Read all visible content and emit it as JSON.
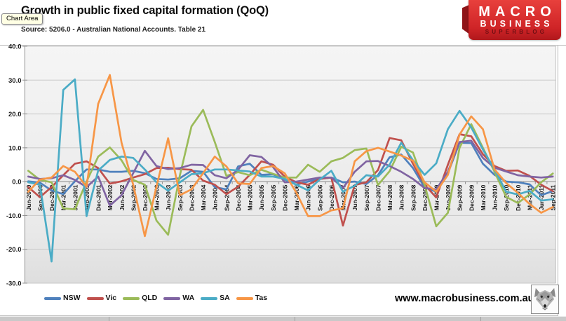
{
  "window": {
    "tooltip": "Chart Area"
  },
  "header": {
    "title": "Growth in public fixed capital formation (QoQ)",
    "source": "Source: 5206.0 - Australian National Accounts. Table 21"
  },
  "logo": {
    "line1": "MACRO",
    "line2": "BUSINESS",
    "line3": "SUPERBLOG"
  },
  "footer": {
    "url": "www.macrobusiness.com.au",
    "wolf_icon": "wolf-logo"
  },
  "chart_data": {
    "type": "line",
    "title": "Growth in public fixed capital formation (QoQ)",
    "source_note": "Source: 5206.0 - Australian National Accounts. Table 21",
    "xlabel": "",
    "ylabel": "",
    "ylim": [
      -30,
      40
    ],
    "ytick_step": 10,
    "ytick_labels": [
      "40.0",
      "30.0",
      "20.0",
      "10.0",
      "0.0",
      "-10.0",
      "-20.0",
      "-30.0"
    ],
    "grid": true,
    "legend_position": "bottom",
    "categories": [
      "Jun-2000",
      "Sep-2000",
      "Dec-2000",
      "Mar-2001",
      "Jun-2001",
      "Sep-2001",
      "Dec-2001",
      "Mar-2002",
      "Jun-2002",
      "Sep-2002",
      "Dec-2002",
      "Mar-2003",
      "Jun-2003",
      "Sep-2003",
      "Dec-2003",
      "Mar-2004",
      "Jun-2004",
      "Sep-2004",
      "Dec-2004",
      "Mar-2005",
      "Jun-2005",
      "Sep-2005",
      "Dec-2005",
      "Mar-2006",
      "Jun-2006",
      "Sep-2006",
      "Dec-2006",
      "Mar-2007",
      "Jun-2007",
      "Sep-2007",
      "Dec-2007",
      "Mar-2008",
      "Jun-2008",
      "Sep-2008",
      "Dec-2008",
      "Mar-2009",
      "Jun-2009",
      "Sep-2009",
      "Dec-2009",
      "Mar-2010",
      "Jun-2010",
      "Sep-2010",
      "Dec-2010",
      "Mar-2011",
      "Jun-2011",
      "Sep-2011"
    ],
    "series": [
      {
        "name": "NSW",
        "color": "#4F81BD",
        "values": [
          0.1,
          -0.3,
          -2.6,
          -3.7,
          0.1,
          3.6,
          3.6,
          2.9,
          2.9,
          3.2,
          2.5,
          0.8,
          0.6,
          1.0,
          3.2,
          2.9,
          -1.6,
          -2.3,
          4.5,
          5.3,
          2.0,
          2.2,
          0.6,
          -0.9,
          0.0,
          0.8,
          1.2,
          -0.2,
          0.0,
          -0.7,
          1.9,
          7.2,
          8.0,
          4.0,
          -1.7,
          -3.0,
          2.5,
          11.5,
          11.4,
          5.3,
          2.0,
          0.0,
          -0.2,
          -0.8,
          -4.0,
          -2.8
        ]
      },
      {
        "name": "Vic",
        "color": "#C0504D",
        "values": [
          -1.6,
          -4.6,
          -1.6,
          1.9,
          5.3,
          6.0,
          4.0,
          -0.6,
          0.1,
          1.2,
          2.2,
          4.0,
          4.1,
          3.7,
          3.5,
          0.3,
          -0.9,
          -3.7,
          -1.5,
          2.0,
          6.0,
          5.0,
          1.5,
          -0.2,
          -0.9,
          0.8,
          1.2,
          -13.0,
          -1.0,
          -0.2,
          3.4,
          12.9,
          12.2,
          5.3,
          -0.9,
          -4.7,
          5.0,
          14.0,
          13.4,
          8.1,
          4.6,
          3.2,
          3.3,
          1.7,
          -0.9,
          -2.8
        ]
      },
      {
        "name": "QLD",
        "color": "#9BBB59",
        "values": [
          3.2,
          0.5,
          -0.2,
          -7.9,
          -8.2,
          0.0,
          7.4,
          10.1,
          6.3,
          0.5,
          -0.9,
          -11.5,
          -15.7,
          1.8,
          16.3,
          21.2,
          11.7,
          1.7,
          2.8,
          1.9,
          3.5,
          2.3,
          1.2,
          1.2,
          5.0,
          2.9,
          6.0,
          7.0,
          9.3,
          9.8,
          -1.0,
          3.1,
          10.3,
          8.6,
          -1.0,
          -13.2,
          -9.2,
          10.0,
          17.0,
          10.0,
          2.9,
          -4.5,
          -6.3,
          -3.8,
          -0.2,
          2.4
        ]
      },
      {
        "name": "WA",
        "color": "#8064A2",
        "values": [
          1.5,
          0.8,
          1.0,
          1.9,
          0.5,
          -1.6,
          1.5,
          -7.1,
          -4.0,
          2.5,
          9.1,
          4.6,
          3.7,
          4.0,
          5.0,
          4.9,
          1.9,
          1.0,
          3.5,
          7.8,
          7.3,
          4.3,
          -0.2,
          0.0,
          0.6,
          1.2,
          1.2,
          -1.9,
          2.9,
          6.0,
          6.1,
          4.6,
          2.9,
          0.8,
          -1.9,
          -2.3,
          2.9,
          11.7,
          12.1,
          7.0,
          4.1,
          3.0,
          1.9,
          1.5,
          1.2,
          1.5
        ]
      },
      {
        "name": "SA",
        "color": "#4BACC6",
        "values": [
          -0.2,
          -0.9,
          -23.6,
          27.1,
          30.2,
          -10.2,
          3.3,
          6.4,
          7.4,
          7.0,
          3.6,
          -0.2,
          -2.7,
          -0.2,
          2.2,
          2.5,
          3.6,
          3.6,
          3.3,
          3.0,
          1.5,
          1.5,
          0.8,
          -0.9,
          -2.6,
          0.6,
          3.2,
          -3.0,
          -1.2,
          1.9,
          1.5,
          5.0,
          11.5,
          6.3,
          2.0,
          5.4,
          15.5,
          20.9,
          16.0,
          9.5,
          3.6,
          -3.0,
          -3.8,
          -2.7,
          -5.6,
          -5.2
        ]
      },
      {
        "name": "Tas",
        "color": "#F79646",
        "values": [
          -3.0,
          0.6,
          1.2,
          4.6,
          2.9,
          -1.5,
          23.0,
          31.5,
          11.5,
          -0.9,
          -16.1,
          -1.5,
          12.8,
          -4.0,
          -2.3,
          2.5,
          7.4,
          4.5,
          -0.5,
          -0.7,
          4.0,
          4.6,
          2.5,
          -3.3,
          -10.2,
          -10.2,
          -8.5,
          -7.9,
          6.0,
          9.0,
          10.0,
          8.9,
          7.7,
          6.2,
          -0.2,
          -3.0,
          2.0,
          13.9,
          19.3,
          15.5,
          3.6,
          -0.4,
          -3.3,
          -6.6,
          -9.2,
          -7.5
        ]
      }
    ]
  }
}
